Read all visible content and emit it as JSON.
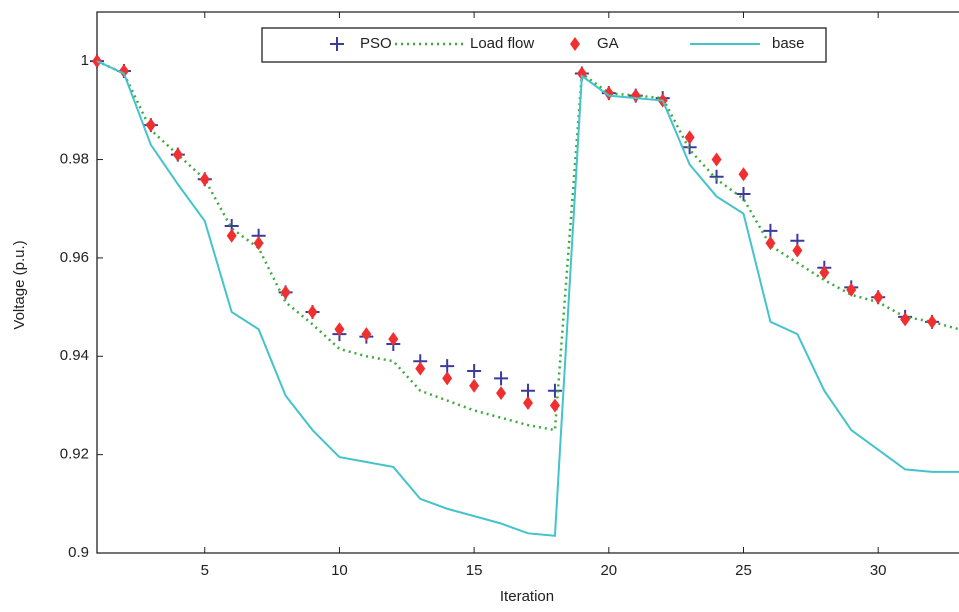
{
  "chart_data": {
    "type": "line",
    "x_label": "Iteration",
    "y_label": "Voltage (p.u.)",
    "x": [
      1,
      2,
      3,
      4,
      5,
      6,
      7,
      8,
      9,
      10,
      11,
      12,
      13,
      14,
      15,
      16,
      17,
      18,
      19,
      20,
      21,
      22,
      23,
      24,
      25,
      26,
      27,
      28,
      29,
      30,
      31,
      32,
      33
    ],
    "xlim": [
      1,
      33
    ],
    "ylim": [
      0.9,
      1.01
    ],
    "xticks": [
      5,
      10,
      15,
      20,
      25,
      30
    ],
    "yticks": [
      0.9,
      0.92,
      0.94,
      0.96,
      0.98,
      1
    ],
    "series": [
      {
        "name": "PSO",
        "color": "#3b3b9c",
        "marker": "plus",
        "values": [
          1,
          0.998,
          0.987,
          0.981,
          0.976,
          0.9665,
          0.9645,
          0.953,
          0.949,
          0.9445,
          0.944,
          0.9425,
          0.939,
          0.938,
          0.937,
          0.9355,
          0.933,
          0.933,
          0.9975,
          0.9935,
          0.993,
          0.9925,
          0.9825,
          0.9765,
          0.973,
          0.9655,
          0.9635,
          0.958,
          0.954,
          0.952,
          0.948,
          0.947,
          null
        ]
      },
      {
        "name": "Load flow",
        "color": "#3caa3c",
        "marker": "dotted",
        "values": [
          1,
          0.9975,
          0.986,
          0.981,
          0.976,
          0.966,
          0.962,
          0.951,
          0.9465,
          0.9415,
          0.94,
          0.939,
          0.933,
          0.931,
          0.929,
          0.9275,
          0.926,
          0.925,
          0.9975,
          0.9935,
          0.993,
          0.9925,
          0.982,
          0.976,
          0.972,
          0.9625,
          0.959,
          0.9555,
          0.9525,
          0.951,
          0.948,
          0.947,
          0.9455
        ]
      },
      {
        "name": "GA",
        "color": "#f03030",
        "marker": "diamond",
        "values": [
          1,
          0.998,
          0.987,
          0.981,
          0.976,
          0.9645,
          0.963,
          0.953,
          0.949,
          0.9455,
          0.9445,
          0.9435,
          0.9375,
          0.9355,
          0.934,
          0.9325,
          0.9305,
          0.93,
          0.9975,
          0.9935,
          0.993,
          0.992,
          0.9845,
          0.98,
          0.977,
          0.963,
          0.9615,
          0.957,
          0.9535,
          0.952,
          0.9475,
          0.947,
          null
        ]
      },
      {
        "name": "base",
        "color": "#45c3cb",
        "marker": "solid",
        "values": [
          1,
          0.9975,
          0.983,
          0.975,
          0.9675,
          0.949,
          0.9455,
          0.932,
          0.925,
          0.9195,
          0.9185,
          0.9175,
          0.911,
          0.909,
          0.9075,
          0.906,
          0.904,
          0.9035,
          0.997,
          0.993,
          0.9925,
          0.992,
          0.979,
          0.9725,
          0.969,
          0.947,
          0.9445,
          0.933,
          0.925,
          0.921,
          0.917,
          0.9165,
          0.9165
        ]
      }
    ]
  }
}
